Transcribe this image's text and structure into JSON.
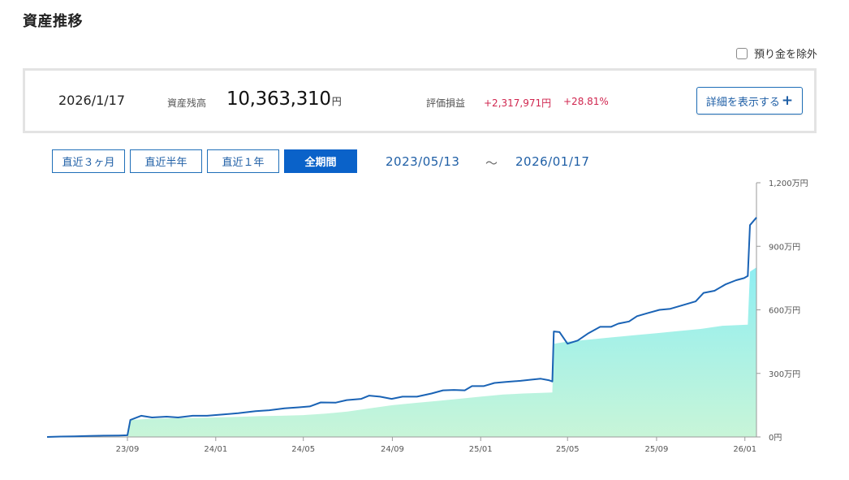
{
  "page": {
    "title": "資産推移"
  },
  "options": {
    "exclude_deposit_label": "預り金を除外",
    "exclude_deposit_checked": false
  },
  "summary": {
    "date": "2026/1/17",
    "balance_label": "資産残高",
    "balance_value": "10,363,310",
    "balance_unit": "円",
    "pl_label": "評価損益",
    "pl_amount": "+2,317,971円",
    "pl_percent": "+28.81%",
    "detail_button_label": "詳細を表示する",
    "detail_button_icon": "plus-icon"
  },
  "period_tabs": [
    {
      "label": "直近３ヶ月",
      "active": false
    },
    {
      "label": "直近半年",
      "active": false
    },
    {
      "label": "直近１年",
      "active": false
    },
    {
      "label": "全期間",
      "active": true
    }
  ],
  "range": {
    "start": "2023/05/13",
    "separator": "～",
    "end": "2026/01/17"
  },
  "colors": {
    "accent": "#0a62c9",
    "line": "#1a63b5",
    "gain": "#d0264f",
    "area_top": "#8eeef2",
    "area_bottom": "#c8f5d8"
  },
  "chart_data": {
    "type": "line",
    "title": "",
    "xlabel": "",
    "ylabel": "",
    "x_ticks": [
      "23/09",
      "24/01",
      "24/05",
      "24/09",
      "25/01",
      "25/05",
      "25/09",
      "26/01"
    ],
    "y_ticks": [
      "0円",
      "300万円",
      "600万円",
      "900万円",
      "1,200万円"
    ],
    "xlim": [
      "2023/05/13",
      "2026/01/17"
    ],
    "ylim": [
      0,
      1200
    ],
    "y_unit": "万円",
    "grid": false,
    "legend": "none",
    "series": [
      {
        "role": "total_assets_line",
        "points": [
          [
            "2023/05/13",
            0
          ],
          [
            "2023/06/01",
            2
          ],
          [
            "2023/06/20",
            3
          ],
          [
            "2023/07/10",
            5
          ],
          [
            "2023/08/01",
            6
          ],
          [
            "2023/08/20",
            7
          ],
          [
            "2023/09/01",
            8
          ],
          [
            "2023/09/05",
            80
          ],
          [
            "2023/09/20",
            100
          ],
          [
            "2023/10/05",
            92
          ],
          [
            "2023/10/25",
            96
          ],
          [
            "2023/11/10",
            92
          ],
          [
            "2023/11/30",
            100
          ],
          [
            "2023/12/20",
            100
          ],
          [
            "2024/01/10",
            106
          ],
          [
            "2024/02/01",
            112
          ],
          [
            "2024/02/25",
            122
          ],
          [
            "2024/03/15",
            126
          ],
          [
            "2024/04/05",
            135
          ],
          [
            "2024/04/25",
            140
          ],
          [
            "2024/05/10",
            144
          ],
          [
            "2024/05/25",
            163
          ],
          [
            "2024/06/15",
            162
          ],
          [
            "2024/06/30",
            174
          ],
          [
            "2024/07/20",
            180
          ],
          [
            "2024/07/31",
            195
          ],
          [
            "2024/08/15",
            190
          ],
          [
            "2024/08/31",
            180
          ],
          [
            "2024/09/15",
            190
          ],
          [
            "2024/10/05",
            190
          ],
          [
            "2024/10/25",
            205
          ],
          [
            "2024/11/10",
            220
          ],
          [
            "2024/11/25",
            222
          ],
          [
            "2024/12/10",
            220
          ],
          [
            "2024/12/20",
            240
          ],
          [
            "2025/01/05",
            240
          ],
          [
            "2025/01/20",
            255
          ],
          [
            "2025/02/05",
            260
          ],
          [
            "2025/02/25",
            265
          ],
          [
            "2025/03/10",
            270
          ],
          [
            "2025/03/25",
            275
          ],
          [
            "2025/04/05",
            268
          ],
          [
            "2025/04/10",
            262
          ],
          [
            "2025/04/12",
            498
          ],
          [
            "2025/04/20",
            495
          ],
          [
            "2025/05/01",
            440
          ],
          [
            "2025/05/15",
            455
          ],
          [
            "2025/05/30",
            490
          ],
          [
            "2025/06/15",
            520
          ],
          [
            "2025/06/30",
            520
          ],
          [
            "2025/07/10",
            535
          ],
          [
            "2025/07/25",
            545
          ],
          [
            "2025/08/05",
            570
          ],
          [
            "2025/08/20",
            585
          ],
          [
            "2025/09/05",
            600
          ],
          [
            "2025/09/20",
            605
          ],
          [
            "2025/10/05",
            620
          ],
          [
            "2025/10/25",
            640
          ],
          [
            "2025/11/05",
            680
          ],
          [
            "2025/11/20",
            690
          ],
          [
            "2025/12/05",
            720
          ],
          [
            "2025/12/20",
            740
          ],
          [
            "2025/12/31",
            750
          ],
          [
            "2026/01/05",
            760
          ],
          [
            "2026/01/08",
            1000
          ],
          [
            "2026/01/17",
            1036
          ]
        ]
      },
      {
        "role": "invested_principal_area",
        "points": [
          [
            "2023/05/13",
            0
          ],
          [
            "2023/09/01",
            0
          ],
          [
            "2023/09/05",
            80
          ],
          [
            "2023/10/01",
            85
          ],
          [
            "2023/11/01",
            88
          ],
          [
            "2023/12/01",
            90
          ],
          [
            "2024/01/01",
            92
          ],
          [
            "2024/02/01",
            95
          ],
          [
            "2024/03/01",
            98
          ],
          [
            "2024/04/01",
            100
          ],
          [
            "2024/05/01",
            103
          ],
          [
            "2024/06/01",
            110
          ],
          [
            "2024/07/01",
            120
          ],
          [
            "2024/08/01",
            135
          ],
          [
            "2024/09/01",
            150
          ],
          [
            "2024/10/01",
            160
          ],
          [
            "2024/11/01",
            170
          ],
          [
            "2024/12/01",
            180
          ],
          [
            "2025/01/01",
            190
          ],
          [
            "2025/02/01",
            200
          ],
          [
            "2025/03/01",
            205
          ],
          [
            "2025/04/10",
            210
          ],
          [
            "2025/04/12",
            440
          ],
          [
            "2025/05/01",
            450
          ],
          [
            "2025/06/01",
            460
          ],
          [
            "2025/07/01",
            470
          ],
          [
            "2025/08/01",
            480
          ],
          [
            "2025/09/01",
            490
          ],
          [
            "2025/10/01",
            500
          ],
          [
            "2025/11/01",
            510
          ],
          [
            "2025/12/01",
            525
          ],
          [
            "2026/01/05",
            530
          ],
          [
            "2026/01/08",
            780
          ],
          [
            "2026/01/17",
            800
          ]
        ]
      }
    ]
  }
}
